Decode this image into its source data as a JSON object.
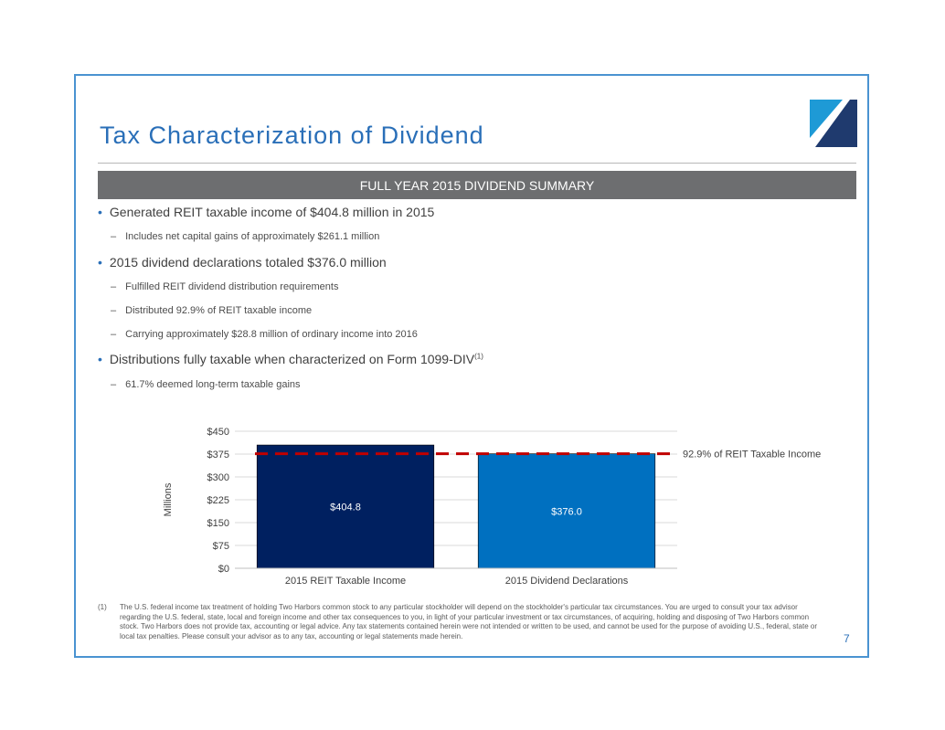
{
  "slide": {
    "title": "Tax Characterization of Dividend",
    "banner": "FULL YEAR 2015 DIVIDEND SUMMARY",
    "page_number": "7"
  },
  "bullets": [
    {
      "level": 1,
      "text": "Generated REIT taxable income of $404.8 million in 2015"
    },
    {
      "level": 2,
      "text": "Includes net capital gains of approximately $261.1 million"
    },
    {
      "level": 1,
      "text": "2015 dividend declarations totaled $376.0 million"
    },
    {
      "level": 2,
      "text": "Fulfilled REIT dividend distribution requirements"
    },
    {
      "level": 2,
      "text": "Distributed 92.9% of REIT taxable income"
    },
    {
      "level": 2,
      "text": "Carrying approximately $28.8 million of ordinary income into 2016"
    },
    {
      "level": 1,
      "text": "Distributions fully taxable when characterized on Form 1099-DIV",
      "sup": "(1)"
    },
    {
      "level": 2,
      "text": "61.7% deemed long-term taxable gains"
    }
  ],
  "chart_data": {
    "type": "bar",
    "categories": [
      "2015 REIT Taxable Income",
      "2015 Dividend Declarations"
    ],
    "values": [
      404.8,
      376.0
    ],
    "data_labels": [
      "$404.8",
      "$376.0"
    ],
    "bar_colors": [
      "#002060",
      "#0070c0"
    ],
    "ylabel": "Millions",
    "ylim": [
      0,
      450
    ],
    "yticks": [
      0,
      75,
      150,
      225,
      300,
      375,
      450
    ],
    "ytick_labels": [
      "$0",
      "$75",
      "$150",
      "$225",
      "$300",
      "$375",
      "$450"
    ],
    "grid": true,
    "reference_line": {
      "value": 376.0,
      "label": "92.9% of REIT Taxable Income",
      "color": "#c00000",
      "style": "dashed"
    }
  },
  "footnote": {
    "marker": "(1)",
    "text": "The U.S. federal income tax treatment of holding Two Harbors common stock to any particular stockholder will depend on the stockholder's particular tax circumstances.  You are urged to consult your tax advisor regarding the U.S. federal, state, local and foreign income and other tax consequences to you, in light of your particular investment or tax circumstances, of acquiring, holding and disposing of Two Harbors common stock.  Two Harbors does not provide tax, accounting or legal advice. Any tax statements contained herein were not intended or written to be used, and cannot be used for the purpose of avoiding U.S., federal, state or local tax penalties. Please consult your advisor as to any tax, accounting or legal statements made herein."
  },
  "colors": {
    "title": "#2a6fb8",
    "frame": "#4a93d1",
    "banner": "#6d6e70",
    "logo_light": "#1e9ad6",
    "logo_dark": "#1f3a6e"
  }
}
